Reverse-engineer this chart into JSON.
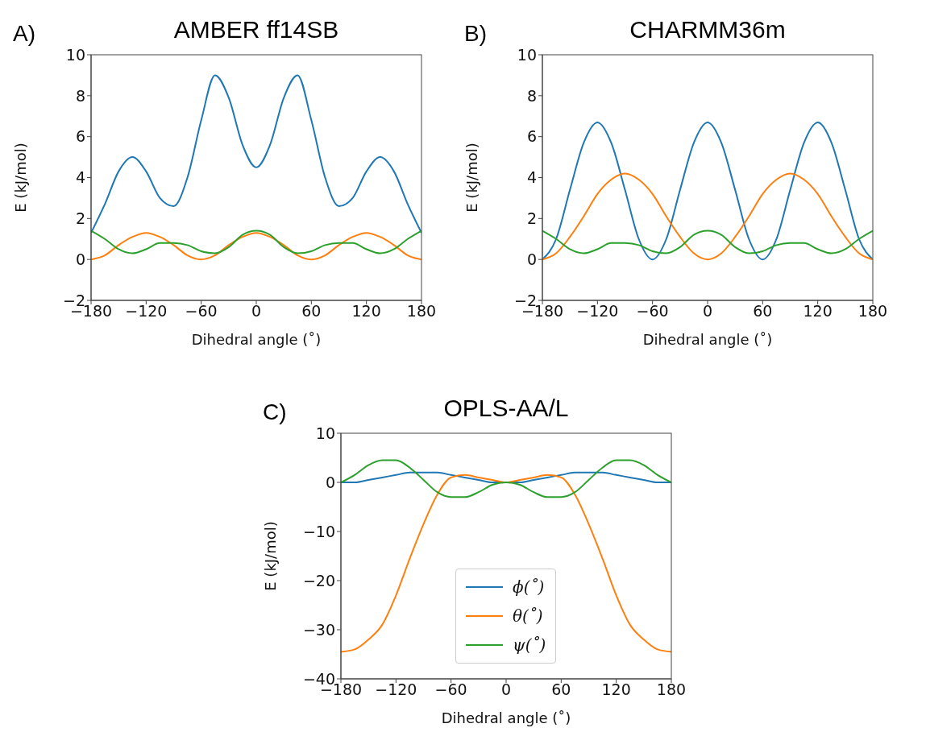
{
  "chart_data": [
    {
      "type": "line",
      "title": "AMBER ff14SB",
      "xlabel": "Dihedral angle (˚)",
      "ylabel": "E (kJ/mol)",
      "annotations": [
        "A)"
      ],
      "xlim": [
        -180,
        180
      ],
      "xticks": [
        -180,
        -120,
        -60,
        0,
        60,
        120,
        180
      ],
      "ylim": [
        -2,
        10
      ],
      "yticks": [
        -2,
        0,
        2,
        4,
        6,
        8,
        10
      ],
      "x": [
        -180,
        -165,
        -150,
        -135,
        -120,
        -105,
        -90,
        -75,
        -60,
        -45,
        -30,
        -15,
        0,
        15,
        30,
        45,
        60,
        75,
        90,
        105,
        120,
        135,
        150,
        165,
        180
      ],
      "series": [
        {
          "color": "#1f77b4",
          "values": [
            1.3,
            2.7,
            4.3,
            5.0,
            4.3,
            3.0,
            2.6,
            4.0,
            6.8,
            9.0,
            7.9,
            5.6,
            4.5,
            5.6,
            7.9,
            9.0,
            6.8,
            4.0,
            2.6,
            3.0,
            4.3,
            5.0,
            4.3,
            2.7,
            1.3
          ]
        },
        {
          "color": "#ff7f0e",
          "values": [
            0,
            0.2,
            0.7,
            1.1,
            1.3,
            1.1,
            0.7,
            0.2,
            0,
            0.2,
            0.7,
            1.1,
            1.3,
            1.1,
            0.7,
            0.2,
            0,
            0.2,
            0.7,
            1.1,
            1.3,
            1.1,
            0.7,
            0.2,
            0
          ]
        },
        {
          "color": "#2ca02c",
          "values": [
            1.4,
            1.0,
            0.5,
            0.3,
            0.5,
            0.8,
            0.8,
            0.7,
            0.4,
            0.3,
            0.6,
            1.2,
            1.4,
            1.2,
            0.6,
            0.3,
            0.4,
            0.7,
            0.8,
            0.8,
            0.5,
            0.3,
            0.5,
            1.0,
            1.4
          ]
        }
      ]
    },
    {
      "type": "line",
      "title": "CHARMM36m",
      "xlabel": "Dihedral angle (˚)",
      "ylabel": "E (kJ/mol)",
      "annotations": [
        "B)"
      ],
      "xlim": [
        -180,
        180
      ],
      "xticks": [
        -180,
        -120,
        -60,
        0,
        60,
        120,
        180
      ],
      "ylim": [
        -2,
        10
      ],
      "yticks": [
        -2,
        0,
        2,
        4,
        6,
        8,
        10
      ],
      "x": [
        -180,
        -165,
        -150,
        -135,
        -120,
        -105,
        -90,
        -75,
        -60,
        -45,
        -30,
        -15,
        0,
        15,
        30,
        45,
        60,
        75,
        90,
        105,
        120,
        135,
        150,
        165,
        180
      ],
      "series": [
        {
          "color": "#1f77b4",
          "values": [
            0,
            1.0,
            3.4,
            5.7,
            6.7,
            5.7,
            3.4,
            1.0,
            0,
            1.0,
            3.4,
            5.7,
            6.7,
            5.7,
            3.4,
            1.0,
            0,
            1.0,
            3.4,
            5.7,
            6.7,
            5.7,
            3.4,
            1.0,
            0
          ]
        },
        {
          "color": "#ff7f0e",
          "values": [
            0,
            0.3,
            1.1,
            2.1,
            3.2,
            3.9,
            4.2,
            3.9,
            3.2,
            2.1,
            1.1,
            0.3,
            0,
            0.3,
            1.1,
            2.1,
            3.2,
            3.9,
            4.2,
            3.9,
            3.2,
            2.1,
            1.1,
            0.3,
            0
          ]
        },
        {
          "color": "#2ca02c",
          "values": [
            1.4,
            1.0,
            0.5,
            0.3,
            0.5,
            0.8,
            0.8,
            0.7,
            0.4,
            0.3,
            0.6,
            1.2,
            1.4,
            1.2,
            0.6,
            0.3,
            0.4,
            0.7,
            0.8,
            0.8,
            0.5,
            0.3,
            0.5,
            1.0,
            1.4
          ]
        }
      ]
    },
    {
      "type": "line",
      "title": "OPLS-AA/L",
      "xlabel": "Dihedral angle (˚)",
      "ylabel": "E (kJ/mol)",
      "annotations": [
        "C)"
      ],
      "legend": "bottom",
      "xlim": [
        -180,
        180
      ],
      "xticks": [
        -180,
        -120,
        -60,
        0,
        60,
        120,
        180
      ],
      "ylim": [
        -40,
        10
      ],
      "yticks": [
        -40,
        -30,
        -20,
        -10,
        0,
        10
      ],
      "x": [
        -180,
        -165,
        -150,
        -135,
        -120,
        -105,
        -90,
        -75,
        -60,
        -45,
        -30,
        -15,
        0,
        15,
        30,
        45,
        60,
        75,
        90,
        105,
        120,
        135,
        150,
        165,
        180
      ],
      "series": [
        {
          "name": "ϕ(˚)",
          "color": "#1f77b4",
          "values": [
            0,
            0,
            0.5,
            1,
            1.5,
            2,
            2,
            2,
            1.5,
            1,
            0.5,
            0,
            0,
            0,
            0.5,
            1,
            1.5,
            2,
            2,
            2,
            1.5,
            1,
            0.5,
            0,
            0
          ]
        },
        {
          "name": "θ(˚)",
          "color": "#ff7f0e",
          "values": [
            -34.5,
            -34,
            -32,
            -29,
            -23,
            -15.5,
            -8.5,
            -2.5,
            1,
            1.5,
            1,
            0.5,
            0,
            0.5,
            1,
            1.5,
            1,
            -2.5,
            -8.5,
            -15.5,
            -23,
            -29,
            -32,
            -34,
            -34.5
          ]
        },
        {
          "name": "ψ(˚)",
          "color": "#2ca02c",
          "values": [
            0,
            1.5,
            3.5,
            4.5,
            4.5,
            3,
            0.5,
            -2,
            -3,
            -3,
            -2,
            -0.5,
            0,
            -0.5,
            -2,
            -3,
            -3,
            -2,
            0.5,
            3,
            4.5,
            4.5,
            3.5,
            1.5,
            0
          ]
        }
      ]
    }
  ]
}
